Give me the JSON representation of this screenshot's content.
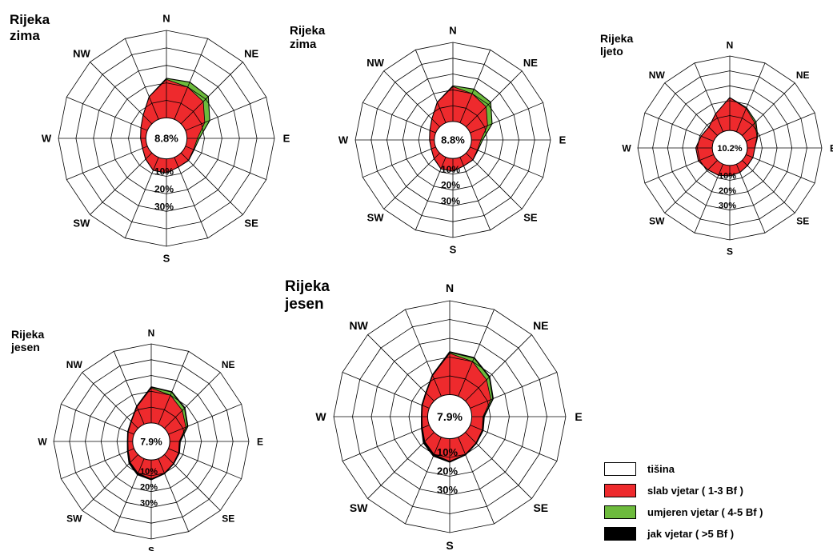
{
  "legend": {
    "items": [
      {
        "label": "tišina",
        "color": "#ffffff"
      },
      {
        "label": "slab vjetar ( 1-3 Bf )",
        "color": "#ee2a2d"
      },
      {
        "label": "umjeren vjetar ( 4-5 Bf )",
        "color": "#6dbb3c"
      },
      {
        "label": "jak vjetar ( >5 Bf )",
        "color": "#000000"
      }
    ]
  },
  "chart_data": [
    {
      "type": "wind-rose",
      "title": "Rijeka\nzima",
      "directions": [
        "N",
        "NE",
        "E",
        "SE",
        "S",
        "SW",
        "W",
        "NW"
      ],
      "calm_label": "8.8%",
      "rings": [
        "10%",
        "20%",
        "30%"
      ],
      "sectors": 16,
      "series": [
        {
          "name": "slab vjetar ( 1-3 Bf )",
          "values": [
            22,
            20,
            18,
            12,
            6,
            5,
            6,
            6,
            8,
            8,
            5,
            3,
            3,
            4,
            7,
            14
          ]
        },
        {
          "name": "umjeren vjetar ( 4-5 Bf )",
          "values": [
            0.5,
            3,
            4,
            3,
            1,
            0.3,
            0.1,
            0,
            0,
            0,
            0,
            0,
            0,
            0,
            0,
            0
          ]
        },
        {
          "name": "jak vjetar ( >5 Bf )",
          "values": [
            0,
            0,
            0,
            0,
            0,
            0,
            0,
            0,
            0,
            0,
            0,
            0,
            0,
            0,
            0,
            0
          ]
        }
      ]
    },
    {
      "type": "wind-rose",
      "title": "Rijeka\nzima",
      "directions": [
        "N",
        "NE",
        "E",
        "SE",
        "S",
        "SW",
        "W",
        "NW"
      ],
      "calm_label": "8.8%",
      "rings": [
        "10%",
        "20%",
        "30%"
      ],
      "sectors": 16,
      "series": [
        {
          "name": "slab vjetar ( 1-3 Bf )",
          "values": [
            22,
            20,
            18,
            12,
            6,
            5,
            6,
            6,
            8,
            8,
            5,
            3,
            3,
            4,
            7,
            14
          ]
        },
        {
          "name": "umjeren vjetar ( 4-5 Bf )",
          "values": [
            0.5,
            3,
            4,
            3,
            1,
            0.3,
            0.1,
            0,
            0,
            0,
            0,
            0,
            0,
            0,
            0,
            0
          ]
        },
        {
          "name": "jak vjetar ( >5 Bf )",
          "values": [
            0,
            0,
            0,
            0,
            0,
            0,
            0,
            0,
            0,
            0,
            0,
            0,
            0,
            0,
            0,
            0
          ]
        }
      ]
    },
    {
      "type": "wind-rose",
      "title": "Rijeka\nljeto",
      "directions": [
        "N",
        "NE",
        "E",
        "SE",
        "S",
        "SW",
        "W",
        "NW"
      ],
      "calm_label": "10.2%",
      "rings": [
        "10%",
        "20%",
        "30%"
      ],
      "sectors": 16,
      "series": [
        {
          "name": "slab vjetar ( 1-3 Bf )",
          "values": [
            22,
            17,
            12,
            8,
            5,
            5,
            5,
            6,
            7,
            8,
            9,
            11,
            11,
            9,
            8,
            13
          ]
        },
        {
          "name": "umjeren vjetar ( 4-5 Bf )",
          "values": [
            0,
            0.5,
            1,
            0.5,
            0,
            0,
            0,
            0,
            0,
            0,
            0,
            0,
            0,
            0,
            0,
            0
          ]
        },
        {
          "name": "jak vjetar ( >5 Bf )",
          "values": [
            0,
            0,
            0,
            0,
            0,
            0,
            0,
            0,
            0,
            0,
            0,
            0,
            0,
            0,
            0,
            0
          ]
        }
      ]
    },
    {
      "type": "wind-rose",
      "title": "Rijeka\njesen",
      "directions": [
        "N",
        "NE",
        "E",
        "SE",
        "S",
        "SW",
        "W",
        "NW"
      ],
      "calm_label": "7.9%",
      "rings": [
        "10%",
        "20%",
        "30%"
      ],
      "sectors": 16,
      "series": [
        {
          "name": "slab vjetar ( 1-3 Bf )",
          "values": [
            22,
            20,
            16,
            12,
            6,
            7,
            8,
            10,
            12,
            10,
            7,
            4,
            3,
            4,
            6,
            12
          ]
        },
        {
          "name": "umjeren vjetar ( 4-5 Bf )",
          "values": [
            0.5,
            2,
            2,
            1,
            0.3,
            0.2,
            0,
            0,
            0,
            0,
            0,
            0,
            0,
            0,
            0,
            0
          ]
        },
        {
          "name": "jak vjetar ( >5 Bf )",
          "values": [
            0.3,
            0.3,
            0.3,
            0.3,
            0.3,
            0.3,
            0.3,
            0.3,
            0.5,
            1,
            1,
            0.5,
            0.3,
            0.3,
            0.3,
            0.3
          ]
        }
      ]
    },
    {
      "type": "wind-rose",
      "title": "Rijeka\njesen",
      "directions": [
        "N",
        "NE",
        "E",
        "SE",
        "S",
        "SW",
        "W",
        "NW"
      ],
      "calm_label": "7.9%",
      "rings": [
        "10%",
        "20%",
        "30%"
      ],
      "sectors": 16,
      "series": [
        {
          "name": "slab vjetar ( 1-3 Bf )",
          "values": [
            22,
            20,
            16,
            12,
            6,
            7,
            8,
            10,
            12,
            10,
            7,
            4,
            3,
            4,
            6,
            12
          ]
        },
        {
          "name": "umjeren vjetar ( 4-5 Bf )",
          "values": [
            0.5,
            2,
            2,
            1,
            0.3,
            0.2,
            0,
            0,
            0,
            0,
            0,
            0,
            0,
            0,
            0,
            0
          ]
        },
        {
          "name": "jak vjetar ( >5 Bf )",
          "values": [
            0.3,
            0.3,
            0.3,
            0.3,
            0.3,
            0.3,
            0.3,
            0.3,
            0.5,
            1,
            1,
            0.5,
            0.3,
            0.3,
            0.3,
            0.3
          ]
        }
      ]
    }
  ]
}
